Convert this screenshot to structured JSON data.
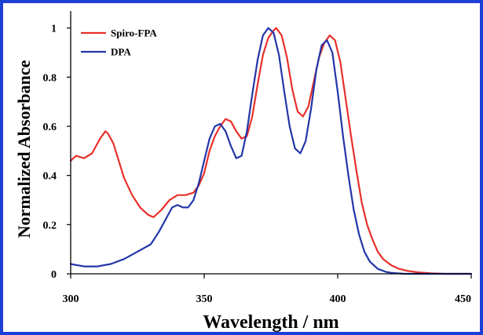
{
  "chart_data": {
    "type": "line",
    "title": "",
    "xlabel": "Wavelength / nm",
    "ylabel": "Normalized Absorbance",
    "xlim": [
      300,
      450
    ],
    "ylim": [
      0,
      1.05
    ],
    "xticks": [
      "300",
      "350",
      "400",
      "450"
    ],
    "yticks": [
      "0",
      "0.2",
      "0.4",
      "0.6",
      "0.8",
      "1"
    ],
    "grid": false,
    "legend_position": "top-left",
    "series": [
      {
        "name": "Spiro-FPA",
        "color": "#e8302a",
        "x": [
          300,
          302,
          305,
          308,
          311,
          313,
          314,
          316,
          318,
          320,
          323,
          326,
          329,
          331,
          334,
          337,
          340,
          343,
          346,
          348,
          350,
          352,
          354,
          356,
          358,
          360,
          362,
          364,
          366,
          368,
          370,
          372,
          374,
          376,
          377,
          379,
          381,
          383,
          385,
          387,
          389,
          391,
          393,
          395,
          397,
          399,
          401,
          403,
          405,
          407,
          409,
          411,
          413,
          415,
          417,
          420,
          423,
          426,
          430,
          435,
          440,
          450
        ],
        "y": [
          0.46,
          0.48,
          0.47,
          0.49,
          0.55,
          0.58,
          0.57,
          0.53,
          0.46,
          0.39,
          0.32,
          0.27,
          0.24,
          0.23,
          0.26,
          0.3,
          0.32,
          0.32,
          0.33,
          0.36,
          0.41,
          0.5,
          0.56,
          0.6,
          0.63,
          0.62,
          0.58,
          0.55,
          0.56,
          0.64,
          0.77,
          0.89,
          0.96,
          0.99,
          1.0,
          0.97,
          0.88,
          0.75,
          0.66,
          0.64,
          0.68,
          0.78,
          0.88,
          0.94,
          0.97,
          0.95,
          0.86,
          0.71,
          0.56,
          0.42,
          0.29,
          0.2,
          0.14,
          0.09,
          0.06,
          0.035,
          0.02,
          0.012,
          0.006,
          0.002,
          0.0,
          0.0
        ]
      },
      {
        "name": "DPA",
        "color": "#2236a8",
        "x": [
          300,
          305,
          310,
          315,
          320,
          325,
          330,
          333,
          336,
          338,
          340,
          342,
          344,
          346,
          348,
          350,
          352,
          354,
          356,
          358,
          360,
          362,
          364,
          366,
          368,
          370,
          372,
          374,
          376,
          378,
          380,
          382,
          384,
          386,
          388,
          390,
          392,
          394,
          396,
          398,
          400,
          402,
          404,
          406,
          408,
          410,
          412,
          415,
          418,
          420,
          425,
          430,
          450
        ],
        "y": [
          0.04,
          0.03,
          0.03,
          0.04,
          0.06,
          0.09,
          0.12,
          0.17,
          0.23,
          0.27,
          0.28,
          0.27,
          0.27,
          0.3,
          0.37,
          0.46,
          0.55,
          0.6,
          0.61,
          0.58,
          0.52,
          0.47,
          0.48,
          0.58,
          0.73,
          0.87,
          0.97,
          1.0,
          0.98,
          0.89,
          0.74,
          0.6,
          0.51,
          0.49,
          0.54,
          0.67,
          0.83,
          0.93,
          0.95,
          0.9,
          0.74,
          0.56,
          0.4,
          0.26,
          0.16,
          0.09,
          0.05,
          0.02,
          0.008,
          0.004,
          0.0,
          0.0,
          0.0
        ]
      }
    ]
  }
}
